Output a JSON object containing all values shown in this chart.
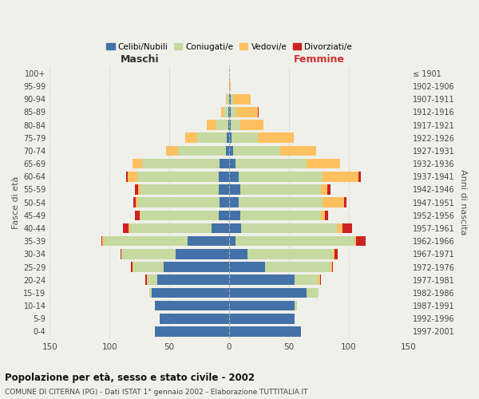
{
  "age_groups": [
    "0-4",
    "5-9",
    "10-14",
    "15-19",
    "20-24",
    "25-29",
    "30-34",
    "35-39",
    "40-44",
    "45-49",
    "50-54",
    "55-59",
    "60-64",
    "65-69",
    "70-74",
    "75-79",
    "80-84",
    "85-89",
    "90-94",
    "95-99",
    "100+"
  ],
  "birth_years": [
    "1997-2001",
    "1992-1996",
    "1987-1991",
    "1982-1986",
    "1977-1981",
    "1972-1976",
    "1967-1971",
    "1962-1966",
    "1957-1961",
    "1952-1956",
    "1947-1951",
    "1942-1946",
    "1937-1941",
    "1932-1936",
    "1927-1931",
    "1922-1926",
    "1917-1921",
    "1912-1916",
    "1907-1911",
    "1902-1906",
    "≤ 1901"
  ],
  "maschi": {
    "celibi": [
      62,
      58,
      62,
      65,
      60,
      55,
      45,
      35,
      15,
      9,
      8,
      9,
      9,
      8,
      3,
      2,
      1,
      1,
      0,
      0,
      0
    ],
    "coniugati": [
      0,
      0,
      0,
      2,
      8,
      25,
      45,
      70,
      68,
      65,
      68,
      65,
      68,
      65,
      40,
      25,
      10,
      4,
      2,
      0,
      0
    ],
    "vedovi": [
      0,
      0,
      0,
      0,
      1,
      1,
      0,
      1,
      1,
      1,
      2,
      2,
      8,
      8,
      10,
      10,
      8,
      2,
      1,
      0,
      0
    ],
    "divorziati": [
      0,
      0,
      0,
      0,
      1,
      1,
      1,
      1,
      5,
      4,
      2,
      3,
      1,
      0,
      0,
      0,
      0,
      0,
      0,
      0,
      0
    ]
  },
  "femmine": {
    "nubili": [
      60,
      55,
      55,
      65,
      55,
      30,
      15,
      5,
      10,
      9,
      8,
      9,
      8,
      5,
      3,
      2,
      1,
      1,
      1,
      0,
      0
    ],
    "coniugate": [
      0,
      0,
      2,
      10,
      20,
      55,
      72,
      100,
      80,
      68,
      70,
      68,
      70,
      60,
      40,
      22,
      8,
      5,
      2,
      0,
      0
    ],
    "vedove": [
      0,
      0,
      0,
      0,
      1,
      1,
      1,
      1,
      5,
      3,
      18,
      5,
      30,
      28,
      30,
      30,
      20,
      18,
      15,
      1,
      0
    ],
    "divorziate": [
      0,
      0,
      0,
      0,
      1,
      1,
      3,
      8,
      8,
      3,
      2,
      3,
      2,
      0,
      0,
      0,
      0,
      1,
      0,
      0,
      0
    ]
  },
  "colors": {
    "celibi": "#4472a8",
    "coniugati": "#c5d9a0",
    "vedovi": "#ffc060",
    "divorziati": "#cc2222"
  },
  "legend_labels": [
    "Celibi/Nubili",
    "Coniugati/e",
    "Vedovi/e",
    "Divorziati/e"
  ],
  "title": "Popolazione per età, sesso e stato civile - 2002",
  "subtitle": "COMUNE DI CITERNA (PG) - Dati ISTAT 1° gennaio 2002 - Elaborazione TUTTITALIA.IT",
  "xlabel_left": "Maschi",
  "xlabel_right": "Femmine",
  "ylabel_left": "Fasce di età",
  "ylabel_right": "Anni di nascita",
  "xlim": 150,
  "background_color": "#f0f0eb"
}
